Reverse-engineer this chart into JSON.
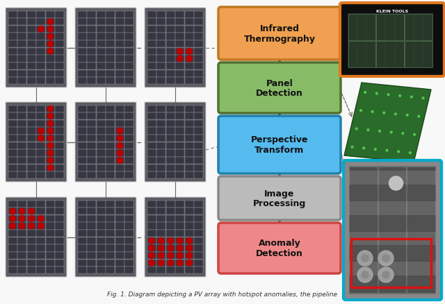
{
  "bg_color": "#f0f0f0",
  "caption": "Fig. 1. Diagram depicting a PV array with hotspot anomalies, the pipeline",
  "panel_rows": 10,
  "panel_cols": 6,
  "panel_cell_dark": "#3a3a3f",
  "panel_cell_line": "#888899",
  "panel_bg": "#555560",
  "panel_border": "#dddddd",
  "hotspot_color": "#bb0000",
  "flow_labels": [
    "Infrared\nThermography",
    "Panel\nDetection",
    "Perspective\nTransform",
    "Image\nProcessing",
    "Anomaly\nDetection"
  ],
  "flow_colors": [
    "#f0a050",
    "#88bb66",
    "#55bbee",
    "#bbbbbb",
    "#ee8888"
  ],
  "flow_border_colors": [
    "#c07820",
    "#507030",
    "#2080aa",
    "#888888",
    "#cc4444"
  ],
  "arrow_color": "#111111",
  "dash_color": "#666666",
  "cam_border": "#e07820",
  "cam_bg": "#111111",
  "green_panel_color": "#336633",
  "cyan_border": "#00aacc",
  "red_box_color": "#dd1111"
}
